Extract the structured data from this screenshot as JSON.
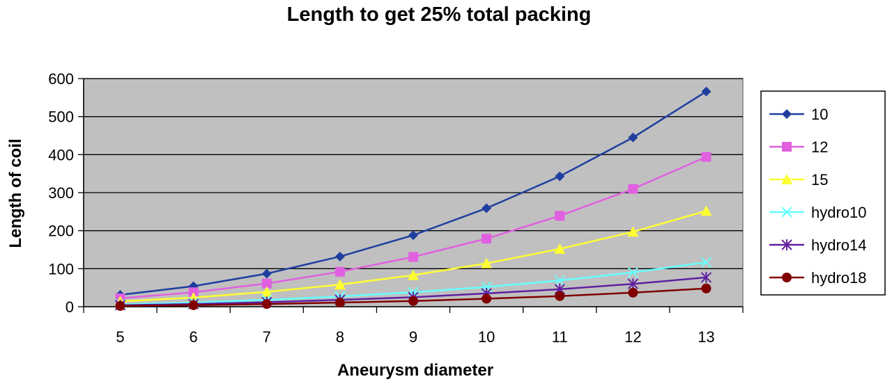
{
  "chart_data": {
    "type": "line",
    "title": "Length to get 25% total packing",
    "xlabel": "Aneurysm diameter",
    "ylabel": "Length of coil",
    "categories": [
      "5",
      "6",
      "7",
      "8",
      "9",
      "10",
      "11",
      "12",
      "13"
    ],
    "ylim": [
      0,
      600
    ],
    "yticks": [
      0,
      100,
      200,
      300,
      400,
      500,
      600
    ],
    "grid": true,
    "legend_position": "right",
    "plot_background": "#c0c0c0",
    "series": [
      {
        "name": "10",
        "color": "#1f3f9f",
        "marker": "diamond",
        "values": [
          31,
          54,
          87,
          132,
          188,
          259,
          343,
          445,
          566
        ]
      },
      {
        "name": "12",
        "color": "#e060e0",
        "marker": "square",
        "values": [
          22,
          38,
          61,
          92,
          131,
          179,
          239,
          310,
          394
        ]
      },
      {
        "name": "15",
        "color": "#ffff33",
        "marker": "triangle",
        "values": [
          14,
          24,
          39,
          58,
          83,
          114,
          152,
          197,
          252
        ]
      },
      {
        "name": "hydro10",
        "color": "#66ffff",
        "marker": "x",
        "values": [
          6,
          11,
          18,
          27,
          38,
          52,
          69,
          90,
          117
        ]
      },
      {
        "name": "hydro14",
        "color": "#6020a0",
        "marker": "star",
        "values": [
          4,
          7,
          12,
          18,
          25,
          35,
          46,
          60,
          77
        ]
      },
      {
        "name": "hydro18",
        "color": "#800000",
        "marker": "circle",
        "values": [
          2,
          4,
          7,
          11,
          15,
          21,
          28,
          37,
          48
        ]
      }
    ]
  }
}
